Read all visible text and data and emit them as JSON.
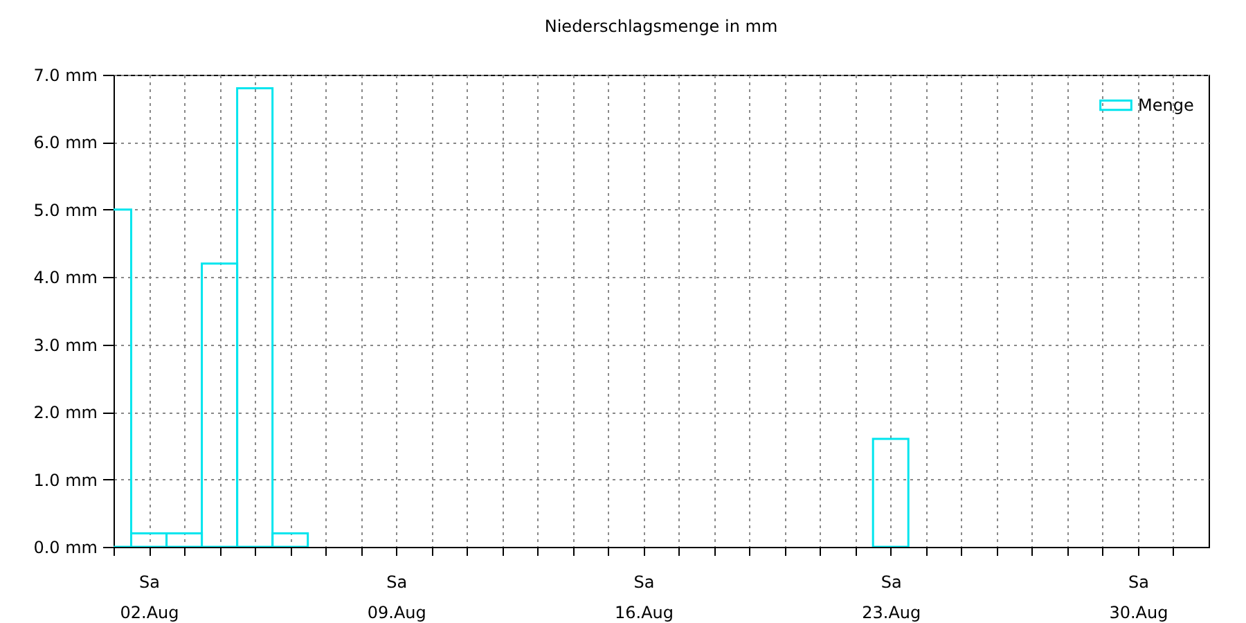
{
  "chart_data": {
    "type": "bar",
    "title": "Niederschlagsmenge in mm",
    "x": [
      "--08-01",
      "--08-02",
      "--08-03",
      "--08-04",
      "--08-05",
      "--08-06",
      "--08-23"
    ],
    "series": [
      {
        "name": "Menge",
        "color": "#00e5ee",
        "values": [
          5.0,
          0.2,
          0.2,
          4.2,
          6.8,
          0.2,
          1.6
        ]
      }
    ],
    "xlim": [
      "--08-01",
      "--09-01"
    ],
    "xticks": [
      {
        "value": "--08-01",
        "label": null
      },
      {
        "value": "--08-02",
        "label": "Sa 02.Aug"
      },
      {
        "value": "--08-03",
        "label": null
      },
      {
        "value": "--08-04",
        "label": null
      },
      {
        "value": "--08-05",
        "label": null
      },
      {
        "value": "--08-06",
        "label": null
      },
      {
        "value": "--08-07",
        "label": null
      },
      {
        "value": "--08-08",
        "label": null
      },
      {
        "value": "--08-09",
        "label": "Sa 09.Aug"
      },
      {
        "value": "--08-10",
        "label": null
      },
      {
        "value": "--08-11",
        "label": null
      },
      {
        "value": "--08-12",
        "label": null
      },
      {
        "value": "--08-13",
        "label": null
      },
      {
        "value": "--08-14",
        "label": null
      },
      {
        "value": "--08-15",
        "label": null
      },
      {
        "value": "--08-16",
        "label": "Sa 16.Aug"
      },
      {
        "value": "--08-17",
        "label": null
      },
      {
        "value": "--08-18",
        "label": null
      },
      {
        "value": "--08-19",
        "label": null
      },
      {
        "value": "--08-20",
        "label": null
      },
      {
        "value": "--08-21",
        "label": null
      },
      {
        "value": "--08-22",
        "label": null
      },
      {
        "value": "--08-23",
        "label": "Sa 23.Aug"
      },
      {
        "value": "--08-24",
        "label": null
      },
      {
        "value": "--08-25",
        "label": null
      },
      {
        "value": "--08-26",
        "label": null
      },
      {
        "value": "--08-27",
        "label": null
      },
      {
        "value": "--08-28",
        "label": null
      },
      {
        "value": "--08-29",
        "label": null
      },
      {
        "value": "--08-30",
        "label": "Sa 30.Aug"
      },
      {
        "value": "--08-31",
        "label": null
      }
    ],
    "ylim": [
      0,
      7
    ],
    "yticks": [
      {
        "value": 0,
        "label": "0.0 mm"
      },
      {
        "value": 1,
        "label": "1.0 mm"
      },
      {
        "value": 2,
        "label": "2.0 mm"
      },
      {
        "value": 3,
        "label": "3.0 mm"
      },
      {
        "value": 4,
        "label": "4.0 mm"
      },
      {
        "value": 5,
        "label": "5.0 mm"
      },
      {
        "value": 6,
        "label": "6.0 mm"
      },
      {
        "value": 7,
        "label": "7.0 mm"
      }
    ],
    "grid": true,
    "legend": "top right"
  }
}
